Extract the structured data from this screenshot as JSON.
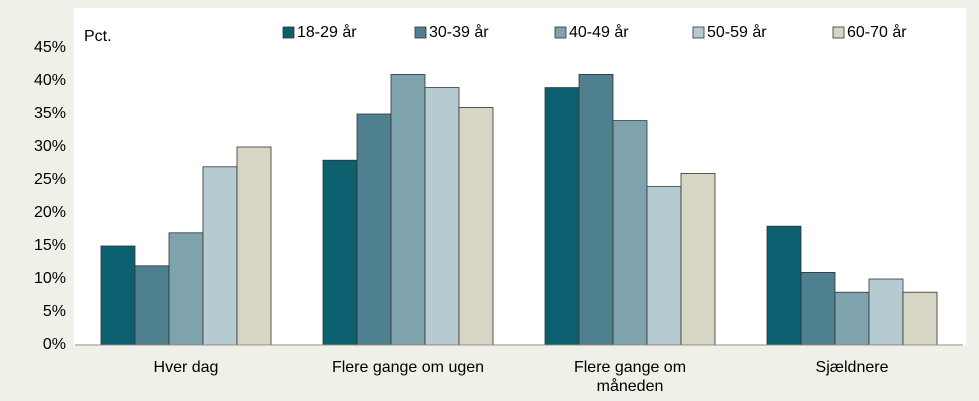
{
  "chart_data": {
    "type": "bar",
    "y_axis_label": "Pct.",
    "categories": [
      "Hver dag",
      "Flere gange om ugen",
      "Flere gange om måneden",
      "Sjældnere"
    ],
    "series": [
      {
        "name": "18-29 år",
        "color": "#0b5f6e",
        "values": [
          15,
          28,
          39,
          18
        ]
      },
      {
        "name": "30-39 år",
        "color": "#4e8090",
        "values": [
          12,
          35,
          41,
          11
        ]
      },
      {
        "name": "40-49 år",
        "color": "#7fa3ad",
        "values": [
          17,
          41,
          34,
          8
        ]
      },
      {
        "name": "50-59 år",
        "color": "#b6cad2",
        "values": [
          27,
          39,
          24,
          10
        ]
      },
      {
        "name": "60-70 år",
        "color": "#d7d6c5",
        "values": [
          30,
          36,
          26,
          8
        ]
      }
    ],
    "ylim": [
      0,
      45
    ],
    "yticks": [
      {
        "value": 0,
        "label": "0%"
      },
      {
        "value": 5,
        "label": "5%"
      },
      {
        "value": 10,
        "label": "10%"
      },
      {
        "value": 15,
        "label": "15%"
      },
      {
        "value": 20,
        "label": "20%"
      },
      {
        "value": 25,
        "label": "25%"
      },
      {
        "value": 30,
        "label": "30%"
      },
      {
        "value": 35,
        "label": "35%"
      },
      {
        "value": 40,
        "label": "40%"
      },
      {
        "value": 45,
        "label": "45%"
      }
    ],
    "legend": "top"
  }
}
